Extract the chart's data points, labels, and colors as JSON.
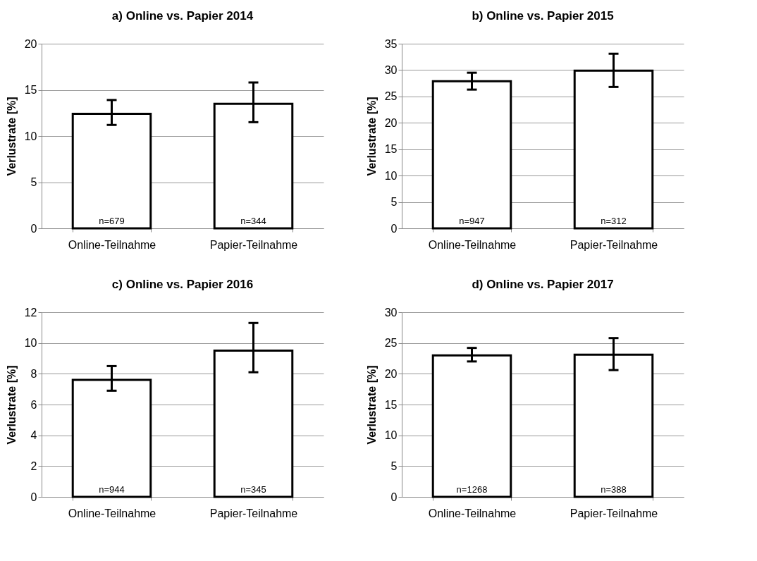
{
  "chart_data": [
    {
      "type": "bar",
      "title": "a) Online vs. Papier 2014",
      "ylabel": "Verlustrate [%]",
      "categories": [
        "Online-Teilnahme",
        "Papier-Teilnahme"
      ],
      "values": [
        12.4,
        13.5
      ],
      "errors": [
        [
          11.2,
          13.9
        ],
        [
          11.5,
          15.8
        ]
      ],
      "color": "#ffffff",
      "ylim": [
        0,
        20
      ],
      "yticks": [
        0,
        5,
        10,
        15,
        20
      ],
      "grid": "y",
      "legend": false,
      "annotations": [
        "n=679",
        "n=344"
      ]
    },
    {
      "type": "bar",
      "title": "b) Online vs. Papier 2015",
      "ylabel": "Verlustrate [%]",
      "categories": [
        "Online-Teilnahme",
        "Papier-Teilnahme"
      ],
      "values": [
        27.9,
        29.9
      ],
      "errors": [
        [
          26.3,
          29.5
        ],
        [
          26.8,
          33.1
        ]
      ],
      "color": "#ffffff",
      "ylim": [
        0,
        35
      ],
      "yticks": [
        0,
        5,
        10,
        15,
        20,
        25,
        30,
        35
      ],
      "grid": "y",
      "legend": false,
      "annotations": [
        "n=947",
        "n=312"
      ]
    },
    {
      "type": "bar",
      "title": "c) Online vs. Papier 2016",
      "ylabel": "Verlustrate [%]",
      "categories": [
        "Online-Teilnahme",
        "Papier-Teilnahme"
      ],
      "values": [
        7.6,
        9.5
      ],
      "errors": [
        [
          6.9,
          8.5
        ],
        [
          8.1,
          11.3
        ]
      ],
      "color": "#ffffff",
      "ylim": [
        0,
        12
      ],
      "yticks": [
        0,
        2,
        4,
        6,
        8,
        10,
        12
      ],
      "grid": "y",
      "legend": false,
      "annotations": [
        "n=944",
        "n=345"
      ]
    },
    {
      "type": "bar",
      "title": "d) Online vs. Papier 2017",
      "ylabel": "Verlustrate [%]",
      "categories": [
        "Online-Teilnahme",
        "Papier-Teilnahme"
      ],
      "values": [
        23.0,
        23.1
      ],
      "errors": [
        [
          22.0,
          24.2
        ],
        [
          20.6,
          25.8
        ]
      ],
      "color": "#ffffff",
      "ylim": [
        0,
        30
      ],
      "yticks": [
        0,
        5,
        10,
        15,
        20,
        25,
        30
      ],
      "grid": "y",
      "legend": false,
      "annotations": [
        "n=1268",
        "n=388"
      ]
    }
  ]
}
